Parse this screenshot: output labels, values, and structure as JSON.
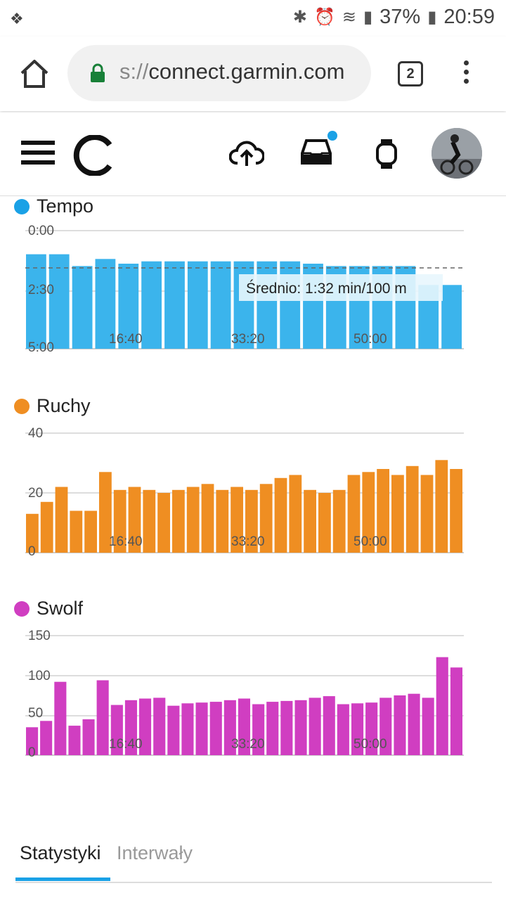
{
  "status_bar": {
    "battery": "37%",
    "time": "20:59",
    "icons": [
      "app-notification-icon",
      "bluetooth-icon",
      "alarm-icon",
      "wifi-icon",
      "signal-icon",
      "battery-icon"
    ]
  },
  "browser": {
    "url_scheme": "s://",
    "url_host": "connect.garmin.com",
    "tab_count": "2"
  },
  "app_header": {
    "icons": [
      "menu-icon",
      "garmin-logo",
      "upload-icon",
      "inbox-icon",
      "watch-icon",
      "avatar"
    ],
    "notification_color": "#1aa1e6"
  },
  "charts": {
    "tempo": {
      "title": "Tempo",
      "color": "#3bb4ec",
      "y_ticks": [
        "0:00",
        "2:30",
        "5:00"
      ],
      "x_ticks": [
        "16:40",
        "33:20",
        "50:00"
      ],
      "average_label": "Średnio: 1:32 min/100 m"
    },
    "ruchy": {
      "title": "Ruchy",
      "color": "#ef8e22",
      "y_ticks": [
        "40",
        "20",
        "0"
      ],
      "x_ticks": [
        "16:40",
        "33:20",
        "50:00"
      ]
    },
    "swolf": {
      "title": "Swolf",
      "color": "#d03ec1",
      "y_ticks": [
        "150",
        "100",
        "50",
        "0"
      ],
      "x_ticks": [
        "16:40",
        "33:20",
        "50:00"
      ]
    }
  },
  "chart_data": [
    {
      "type": "bar",
      "title": "Tempo",
      "x_unit": "elapsed time (mm:ss)",
      "y_unit": "min/100 m (inverted axis)",
      "ylim": [
        "0:00",
        "5:00"
      ],
      "average": "1:32",
      "segments_pace_min_per_100m": [
        1.0,
        1.0,
        1.5,
        1.2,
        1.4,
        1.3,
        1.3,
        1.3,
        1.3,
        1.3,
        1.3,
        1.3,
        1.4,
        1.5,
        1.5,
        1.5,
        1.5,
        2.3,
        2.3
      ],
      "x_ticks": [
        "16:40",
        "33:20",
        "50:00"
      ]
    },
    {
      "type": "bar",
      "title": "Ruchy",
      "ylim": [
        0,
        40
      ],
      "values": [
        13,
        17,
        22,
        14,
        14,
        27,
        21,
        22,
        21,
        20,
        21,
        22,
        23,
        21,
        22,
        21,
        23,
        25,
        26,
        21,
        20,
        21,
        26,
        27,
        28,
        26,
        29,
        26,
        31,
        28
      ],
      "x_ticks": [
        "16:40",
        "33:20",
        "50:00"
      ]
    },
    {
      "type": "bar",
      "title": "Swolf",
      "ylim": [
        0,
        150
      ],
      "values": [
        35,
        43,
        92,
        37,
        45,
        94,
        63,
        69,
        71,
        72,
        62,
        65,
        66,
        67,
        69,
        71,
        64,
        67,
        68,
        69,
        72,
        74,
        64,
        65,
        66,
        72,
        75,
        77,
        72,
        123,
        110
      ],
      "x_ticks": [
        "16:40",
        "33:20",
        "50:00"
      ]
    }
  ],
  "tabs": {
    "active": "Statystyki",
    "inactive": "Interwały"
  }
}
